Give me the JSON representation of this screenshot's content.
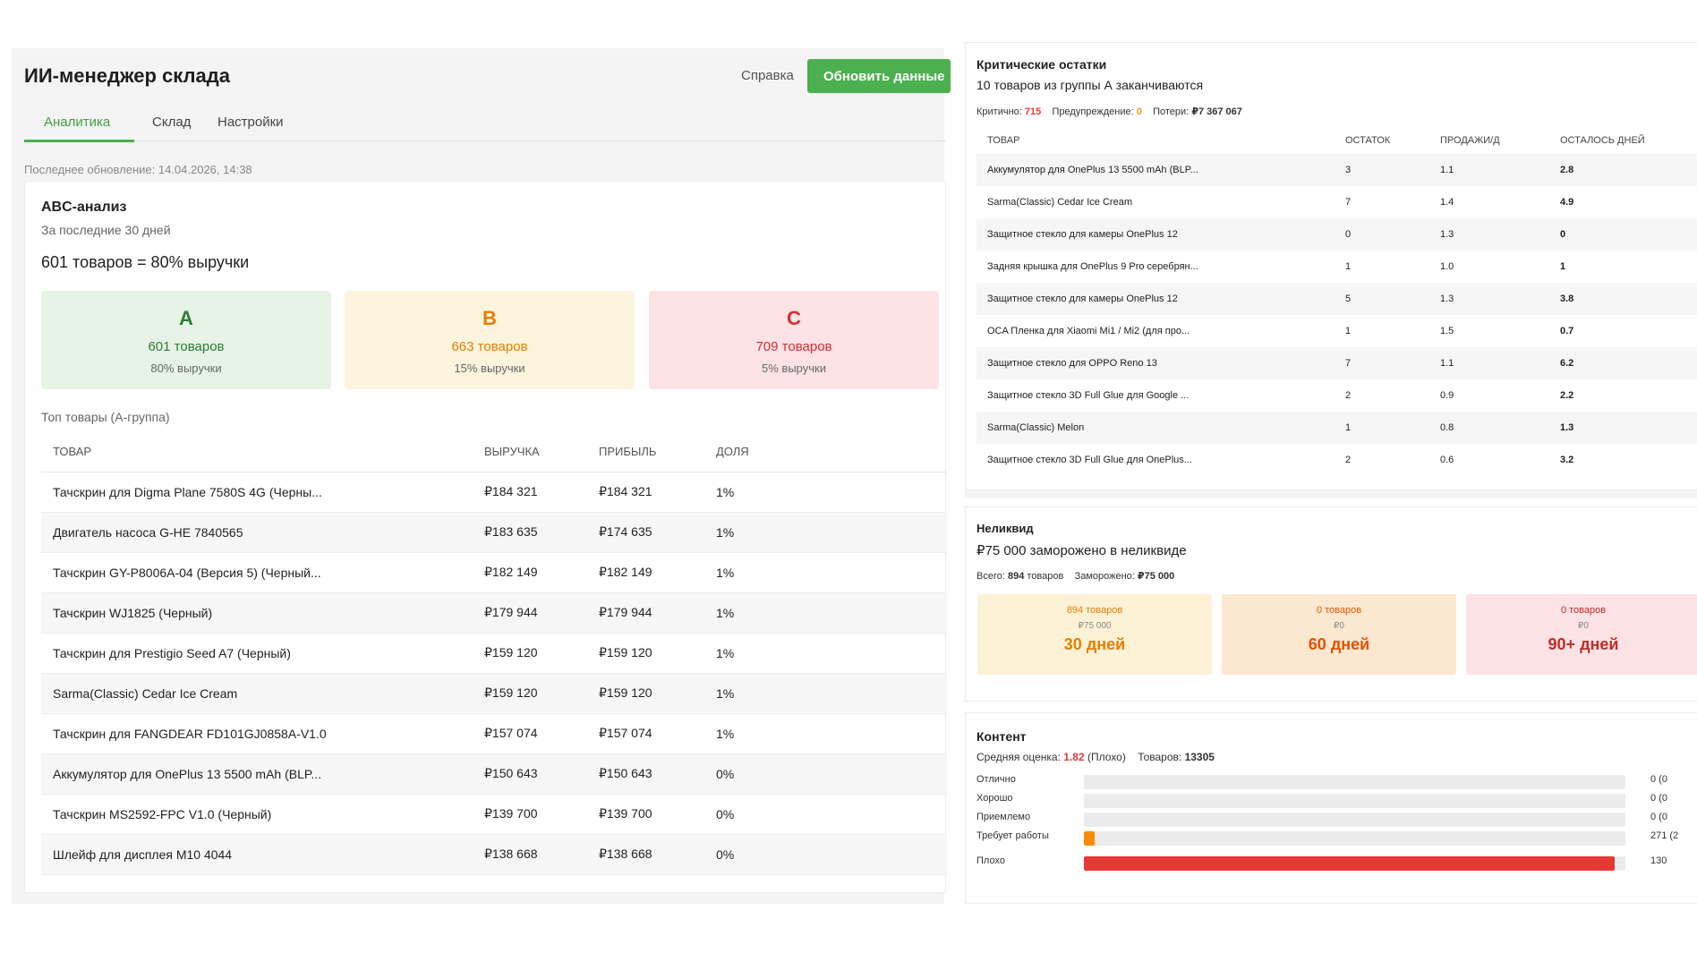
{
  "header": {
    "title": "ИИ-менеджер склада",
    "help_label": "Справка",
    "refresh_label": "Обновить данные"
  },
  "tabs": [
    {
      "label": "Аналитика",
      "active": true
    },
    {
      "label": "Склад",
      "active": false
    },
    {
      "label": "Настройки",
      "active": false
    }
  ],
  "last_update": "Последнее обновление: 14.04.2026, 14:38",
  "abc": {
    "title": "ABC-анализ",
    "subtitle": "За последние 30 дней",
    "headline": "601 товаров = 80% выручки",
    "groups": [
      {
        "letter": "A",
        "count": "601 товаров",
        "share": "80% выручки"
      },
      {
        "letter": "B",
        "count": "663 товаров",
        "share": "15% выручки"
      },
      {
        "letter": "C",
        "count": "709 товаров",
        "share": "5% выручки"
      }
    ],
    "top_label": "Топ товары (А-группа)",
    "columns": [
      "ТОВАР",
      "ВЫРУЧКА",
      "ПРИБЫЛЬ",
      "ДОЛЯ"
    ],
    "rows": [
      [
        "Тачскрин для Digma Plane 7580S 4G (Черны...",
        "₽184 321",
        "₽184 321",
        "1%"
      ],
      [
        "Двигатель насоса G-HE 7840565",
        "₽183 635",
        "₽174 635",
        "1%"
      ],
      [
        "Тачскрин GY-P8006A-04 (Версия 5) (Черный...",
        "₽182 149",
        "₽182 149",
        "1%"
      ],
      [
        "Тачскрин WJ1825 (Черный)",
        "₽179 944",
        "₽179 944",
        "1%"
      ],
      [
        "Тачскрин для Prestigio Seed A7 (Черный)",
        "₽159 120",
        "₽159 120",
        "1%"
      ],
      [
        "Sarma(Classic) Cedar Ice Cream",
        "₽159 120",
        "₽159 120",
        "1%"
      ],
      [
        "Тачскрин для FANGDEAR FD101GJ0858A-V1.0",
        "₽157 074",
        "₽157 074",
        "1%"
      ],
      [
        "Аккумулятор для OnePlus 13 5500 mAh (BLP...",
        "₽150 643",
        "₽150 643",
        "0%"
      ],
      [
        "Тачскрин MS2592-FPC V1.0 (Черный)",
        "₽139 700",
        "₽139 700",
        "0%"
      ],
      [
        "Шлейф для дисплея M10 4044",
        "₽138 668",
        "₽138 668",
        "0%"
      ]
    ]
  },
  "critical": {
    "title": "Критические остатки",
    "subtitle": "10 товаров из группы А заканчиваются",
    "stats": {
      "critical_label": "Критично:",
      "critical_value": "715",
      "warning_label": "Предупреждение:",
      "warning_value": "0",
      "loss_label": "Потери:",
      "loss_value": "₽7 367 067"
    },
    "columns": [
      "ТОВАР",
      "ОСТАТОК",
      "ПРОДАЖИ/Д",
      "ОСТАЛОСЬ ДНЕЙ"
    ],
    "rows": [
      {
        "name": "Аккумулятор для OnePlus 13 5500 mAh (BLP...",
        "stock": "3",
        "sales": "1.1",
        "days": "2.8",
        "level": "warn"
      },
      {
        "name": "Sarma(Classic) Cedar Ice Cream",
        "stock": "7",
        "sales": "1.4",
        "days": "4.9",
        "level": "warn"
      },
      {
        "name": "Защитное стекло для камеры OnePlus 12",
        "stock": "0",
        "sales": "1.3",
        "days": "0",
        "level": "crit"
      },
      {
        "name": "Задняя крышка для OnePlus 9 Pro серебрян...",
        "stock": "1",
        "sales": "1.0",
        "days": "1",
        "level": "crit"
      },
      {
        "name": "Защитное стекло для камеры OnePlus 12",
        "stock": "5",
        "sales": "1.3",
        "days": "3.8",
        "level": "warn"
      },
      {
        "name": "OCA Пленка для Xiaomi Mi1 / Mi2 (для про...",
        "stock": "1",
        "sales": "1.5",
        "days": "0.7",
        "level": "crit"
      },
      {
        "name": "Защитное стекло для OPPO Reno 13",
        "stock": "7",
        "sales": "1.1",
        "days": "6.2",
        "level": "warn"
      },
      {
        "name": "Защитное стекло 3D Full Glue для Google ...",
        "stock": "2",
        "sales": "0.9",
        "days": "2.2",
        "level": "warn"
      },
      {
        "name": "Sarma(Classic) Melon",
        "stock": "1",
        "sales": "0.8",
        "days": "1.3",
        "level": "crit"
      },
      {
        "name": "Защитное стекло 3D Full Glue для OnePlus...",
        "stock": "2",
        "sales": "0.6",
        "days": "3.2",
        "level": "warn"
      }
    ]
  },
  "illiquid": {
    "title": "Неликвид",
    "subtitle": "₽75 000 заморожено в неликвиде",
    "stats": {
      "total_label": "Всего:",
      "total_value": "894",
      "total_unit": "товаров",
      "frozen_label": "Заморожено:",
      "frozen_value": "₽75 000"
    },
    "cards": [
      {
        "count": "894 товаров",
        "value": "₽75 000",
        "days": "30 дней"
      },
      {
        "count": "0 товаров",
        "value": "₽0",
        "days": "60 дней"
      },
      {
        "count": "0 товаров",
        "value": "₽0",
        "days": "90+ дней"
      }
    ]
  },
  "content": {
    "title": "Контент",
    "stats": {
      "avg_label": "Средняя оценка:",
      "avg_value": "1.82",
      "avg_note": "(Плохо)",
      "items_label": "Товаров:",
      "items_value": "13305"
    },
    "ratings": [
      {
        "label": "Отлично",
        "value": "0 (0",
        "fraction": 0,
        "color": "#bdbdbd"
      },
      {
        "label": "Хорошо",
        "value": "0 (0",
        "fraction": 0,
        "color": "#bdbdbd"
      },
      {
        "label": "Приемлемо",
        "value": "0 (0",
        "fraction": 0,
        "color": "#bdbdbd"
      },
      {
        "label": "Требует работы",
        "value": "271 (2",
        "fraction": 0.02,
        "color": "#fb8c00"
      },
      {
        "label": "Плохо",
        "value": "130",
        "fraction": 0.98,
        "color": "#e53935"
      }
    ]
  }
}
